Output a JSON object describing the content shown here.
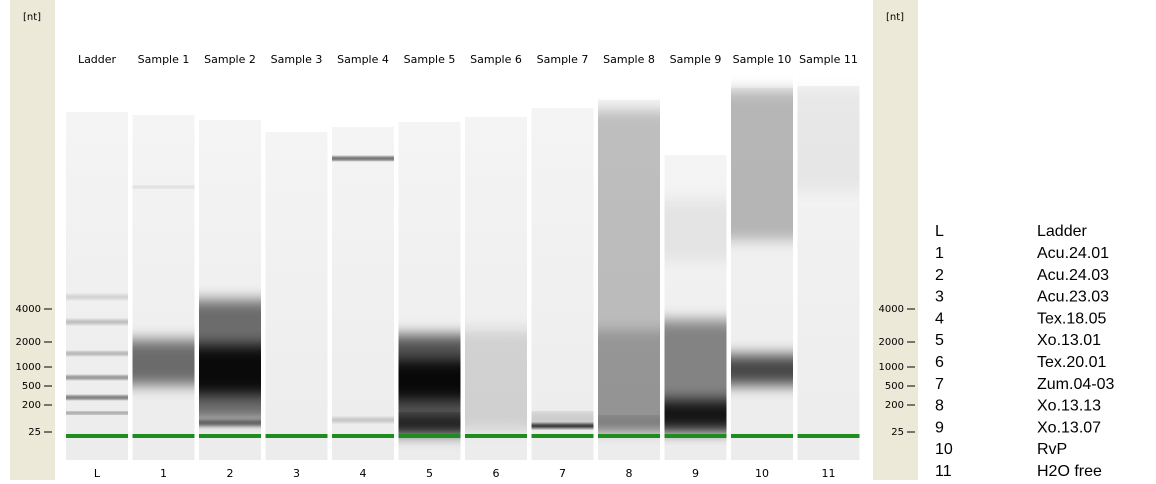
{
  "axis": {
    "unit": "[nt]",
    "ticks": [
      "4000",
      "2000",
      "1000",
      "500",
      "200",
      "25"
    ]
  },
  "lanes": [
    {
      "title": "Ladder",
      "number": "L"
    },
    {
      "title": "Sample 1",
      "number": "1"
    },
    {
      "title": "Sample 2",
      "number": "2"
    },
    {
      "title": "Sample 3",
      "number": "3"
    },
    {
      "title": "Sample 4",
      "number": "4"
    },
    {
      "title": "Sample 5",
      "number": "5"
    },
    {
      "title": "Sample 6",
      "number": "6"
    },
    {
      "title": "Sample 7",
      "number": "7"
    },
    {
      "title": "Sample 8",
      "number": "8"
    },
    {
      "title": "Sample 9",
      "number": "9"
    },
    {
      "title": "Sample 10",
      "number": "10"
    },
    {
      "title": "Sample 11",
      "number": "11"
    }
  ],
  "legend": [
    {
      "key": "L",
      "name": "Ladder"
    },
    {
      "key": "1",
      "name": "Acu.24.01"
    },
    {
      "key": "2",
      "name": "Acu.24.03"
    },
    {
      "key": "3",
      "name": "Acu.23.03"
    },
    {
      "key": "4",
      "name": "Tex.18.05"
    },
    {
      "key": "5",
      "name": "Xo.13.01"
    },
    {
      "key": "6",
      "name": "Tex.20.01"
    },
    {
      "key": "7",
      "name": "Zum.04-03"
    },
    {
      "key": "8",
      "name": "Xo.13.13"
    },
    {
      "key": "9",
      "name": "Xo.13.07"
    },
    {
      "key": "10",
      "name": "RvP"
    },
    {
      "key": "11",
      "name": "H2O free"
    }
  ]
}
